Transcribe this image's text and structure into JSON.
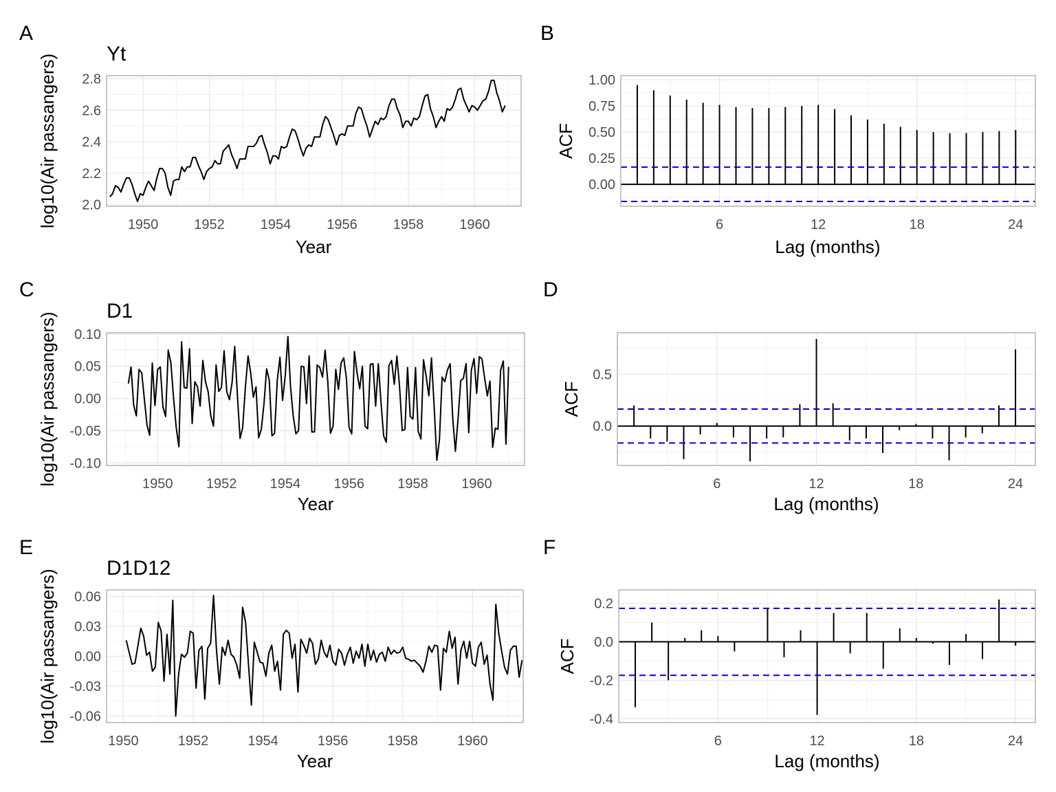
{
  "colors": {
    "line": "#000000",
    "ci": "#0000cc",
    "grid": "#e6e6e6",
    "border": "#b3b3b3"
  },
  "chart_data": [
    {
      "id": "A",
      "type": "line",
      "title": "Yt",
      "xlabel": "Year",
      "ylabel": "log10(Air passangers)",
      "xlim": [
        1948.9,
        1961.4
      ],
      "ylim": [
        1.99,
        2.82
      ],
      "xticks": [
        1950,
        1952,
        1954,
        1956,
        1958,
        1960
      ],
      "yticks": [
        2.0,
        2.2,
        2.4,
        2.6,
        2.8
      ],
      "ytick_labels": [
        "2.0",
        "2.2",
        "2.4",
        "2.6",
        "2.8"
      ],
      "grid": true,
      "x_start": 1949.0,
      "x_step": 0.0833333,
      "y": [
        2.05,
        2.07,
        2.12,
        2.11,
        2.08,
        2.13,
        2.17,
        2.17,
        2.13,
        2.07,
        2.02,
        2.07,
        2.06,
        2.11,
        2.15,
        2.12,
        2.09,
        2.17,
        2.23,
        2.23,
        2.2,
        2.11,
        2.06,
        2.15,
        2.16,
        2.16,
        2.24,
        2.21,
        2.24,
        2.24,
        2.3,
        2.3,
        2.25,
        2.21,
        2.16,
        2.21,
        2.23,
        2.24,
        2.28,
        2.26,
        2.26,
        2.34,
        2.36,
        2.38,
        2.32,
        2.28,
        2.23,
        2.29,
        2.29,
        2.29,
        2.37,
        2.37,
        2.37,
        2.39,
        2.43,
        2.44,
        2.38,
        2.33,
        2.26,
        2.31,
        2.31,
        2.29,
        2.37,
        2.36,
        2.37,
        2.43,
        2.48,
        2.47,
        2.42,
        2.36,
        2.31,
        2.36,
        2.38,
        2.37,
        2.43,
        2.43,
        2.43,
        2.51,
        2.56,
        2.54,
        2.49,
        2.44,
        2.38,
        2.44,
        2.45,
        2.44,
        2.5,
        2.5,
        2.5,
        2.58,
        2.62,
        2.61,
        2.55,
        2.5,
        2.43,
        2.48,
        2.53,
        2.51,
        2.55,
        2.54,
        2.56,
        2.63,
        2.67,
        2.67,
        2.61,
        2.57,
        2.49,
        2.53,
        2.53,
        2.5,
        2.55,
        2.54,
        2.56,
        2.63,
        2.69,
        2.7,
        2.61,
        2.56,
        2.49,
        2.53,
        2.56,
        2.53,
        2.61,
        2.6,
        2.62,
        2.67,
        2.73,
        2.74,
        2.67,
        2.63,
        2.59,
        2.63,
        2.62,
        2.6,
        2.63,
        2.66,
        2.67,
        2.72,
        2.79,
        2.79,
        2.71,
        2.66,
        2.59,
        2.63
      ]
    },
    {
      "id": "B",
      "type": "bar",
      "title": "",
      "xlabel": "Lag (months)",
      "ylabel": "ACF",
      "xlim": [
        0,
        25.2
      ],
      "ylim": [
        -0.21,
        1.04
      ],
      "xticks": [
        6,
        12,
        18,
        24
      ],
      "yticks": [
        0.0,
        0.25,
        0.5,
        0.75,
        1.0
      ],
      "ytick_labels": [
        "0.00",
        "0.25",
        "0.50",
        "0.75",
        "1.00"
      ],
      "grid": true,
      "ci": 0.164,
      "lags": [
        1,
        2,
        3,
        4,
        5,
        6,
        7,
        8,
        9,
        10,
        11,
        12,
        13,
        14,
        15,
        16,
        17,
        18,
        19,
        20,
        21,
        22,
        23,
        24
      ],
      "values": [
        0.95,
        0.9,
        0.85,
        0.81,
        0.78,
        0.76,
        0.74,
        0.73,
        0.73,
        0.74,
        0.75,
        0.76,
        0.72,
        0.66,
        0.62,
        0.58,
        0.55,
        0.52,
        0.5,
        0.49,
        0.49,
        0.5,
        0.51,
        0.52
      ]
    },
    {
      "id": "C",
      "type": "line",
      "title": "D1",
      "xlabel": "Year",
      "ylabel": "log10(Air passangers)",
      "xlim": [
        1948.4,
        1961.5
      ],
      "ylim": [
        -0.104,
        0.102
      ],
      "xticks": [
        1950,
        1952,
        1954,
        1956,
        1958,
        1960
      ],
      "yticks": [
        -0.1,
        -0.05,
        0.0,
        0.05,
        0.1
      ],
      "ytick_labels": [
        "-0.10",
        "-0.05",
        "0.00",
        "0.05",
        "0.10"
      ],
      "grid": true,
      "x_start": 1949.0833,
      "x_step": 0.0833333,
      "y": [
        0.023,
        0.049,
        -0.01,
        -0.027,
        0.045,
        0.04,
        0.0,
        -0.041,
        -0.057,
        0.055,
        -0.011,
        0.045,
        0.049,
        -0.013,
        -0.028,
        0.075,
        0.055,
        0.0,
        -0.045,
        -0.075,
        0.088,
        0.017,
        0.016,
        0.077,
        -0.039,
        0.026,
        0.018,
        -0.012,
        0.059,
        0.026,
        0.011,
        -0.027,
        -0.043,
        0.052,
        0.011,
        0.017,
        0.074,
        0.011,
        -0.002,
        0.025,
        0.081,
        0.005,
        -0.062,
        -0.045,
        0.017,
        0.066,
        0.04,
        0.002,
        0.018,
        -0.061,
        -0.048,
        -0.008,
        0.046,
        0.028,
        -0.058,
        -0.054,
        0.028,
        0.064,
        -0.003,
        0.035,
        0.096,
        0.018,
        -0.027,
        -0.055,
        -0.05,
        0.05,
        0.049,
        -0.008,
        0.066,
        -0.052,
        -0.052,
        0.052,
        0.048,
        0.033,
        0.075,
        0.026,
        -0.054,
        -0.043,
        0.045,
        0.014,
        0.055,
        0.063,
        0.031,
        -0.045,
        -0.055,
        0.073,
        0.04,
        0.015,
        0.05,
        -0.043,
        -0.047,
        0.053,
        0.054,
        -0.012,
        0.054,
        -0.005,
        -0.058,
        -0.068,
        0.051,
        0.059,
        0.022,
        0.066,
        0.018,
        -0.05,
        -0.048,
        0.048,
        -0.028,
        -0.032,
        0.048,
        -0.051,
        -0.063,
        0.06,
        0.034,
        0.004,
        0.063,
        -0.013,
        -0.096,
        -0.064,
        0.033,
        0.026,
        0.044,
        0.054,
        -0.032,
        -0.082,
        -0.031,
        0.028,
        0.031,
        0.054,
        -0.053,
        0.044,
        0.062,
        0.008,
        0.065,
        0.061,
        0.031,
        0.004,
        0.027,
        -0.076,
        -0.046,
        -0.048,
        0.044,
        0.058,
        -0.071,
        0.049
      ]
    },
    {
      "id": "D",
      "type": "bar",
      "title": "",
      "xlabel": "Lag (months)",
      "ylabel": "ACF",
      "xlim": [
        0,
        25.2
      ],
      "ylim": [
        -0.38,
        0.9
      ],
      "xticks": [
        6,
        12,
        18,
        24
      ],
      "yticks": [
        0.0,
        0.5
      ],
      "ytick_labels": [
        "0.0",
        "0.5"
      ],
      "grid": true,
      "ci": 0.164,
      "lags": [
        1,
        2,
        3,
        4,
        5,
        6,
        7,
        8,
        9,
        10,
        11,
        12,
        13,
        14,
        15,
        16,
        17,
        18,
        19,
        20,
        21,
        22,
        23,
        24
      ],
      "values": [
        0.2,
        -0.12,
        -0.15,
        -0.32,
        -0.08,
        0.03,
        -0.11,
        -0.34,
        -0.12,
        -0.11,
        0.21,
        0.84,
        0.22,
        -0.14,
        -0.12,
        -0.26,
        -0.04,
        0.02,
        -0.12,
        -0.33,
        -0.11,
        -0.07,
        0.2,
        0.74
      ]
    },
    {
      "id": "E",
      "type": "line",
      "title": "D1D12",
      "xlabel": "Year",
      "ylabel": "log10(Air passangers)",
      "xlim": [
        1949.52,
        1961.45
      ],
      "ylim": [
        -0.0665,
        0.0665
      ],
      "xticks": [
        1950,
        1952,
        1954,
        1956,
        1958,
        1960
      ],
      "yticks": [
        -0.06,
        -0.03,
        0.0,
        0.03,
        0.06
      ],
      "ytick_labels": [
        "-0.06",
        "-0.03",
        "0.00",
        "0.03",
        "0.06"
      ],
      "grid": true,
      "x_start": 1950.0833,
      "x_step": 0.0833333,
      "y": [
        0.016,
        0.004,
        -0.008,
        -0.007,
        0.01,
        0.028,
        0.02,
        0.001,
        0.004,
        -0.015,
        -0.011,
        0.034,
        0.025,
        -0.025,
        0.022,
        -0.018,
        0.056,
        -0.06,
        -0.018,
        0.002,
        -0.001,
        0.003,
        0.025,
        0.023,
        -0.032,
        0.006,
        0.01,
        -0.043,
        0.008,
        0.013,
        0.061,
        0.007,
        -0.028,
        0.009,
        0.001,
        0.016,
        0.002,
        -0.001,
        -0.009,
        -0.022,
        0.049,
        0.034,
        -0.008,
        -0.049,
        0.014,
        0.004,
        -0.006,
        -0.007,
        -0.02,
        0.003,
        0.011,
        -0.015,
        -0.005,
        -0.034,
        0.022,
        0.026,
        0.023,
        -0.002,
        0.012,
        -0.036,
        0.017,
        0.011,
        0.003,
        0.018,
        0.013,
        -0.008,
        -0.003,
        0.016,
        0.004,
        -0.001,
        0.011,
        -0.005,
        -0.009,
        0.007,
        0.003,
        -0.009,
        0.002,
        0.009,
        -0.007,
        0.005,
        -0.002,
        0.012,
        -0.01,
        0.012,
        -0.004,
        0.006,
        -0.006,
        0.002,
        0.004,
        -0.005,
        0.009,
        0.002,
        0.006,
        0.003,
        0.004,
        0.009,
        -0.002,
        -0.003,
        -0.005,
        -0.004,
        -0.007,
        -0.01,
        -0.016,
        -0.005,
        0.01,
        0.004,
        0.011,
        0.01,
        -0.034,
        0.008,
        0.004,
        0.025,
        0.008,
        0.019,
        -0.028,
        0.006,
        0.015,
        -0.002,
        0.015,
        -0.007,
        -0.01,
        0.009,
        0.014,
        -0.008,
        0.001,
        -0.028,
        -0.044,
        0.052,
        0.023,
        0.005,
        -0.011,
        -0.018,
        0.006,
        0.01,
        0.01,
        -0.021,
        -0.004
      ]
    },
    {
      "id": "F",
      "type": "bar",
      "title": "",
      "xlabel": "Lag (months)",
      "ylabel": "ACF",
      "xlim": [
        0,
        25.2
      ],
      "ylim": [
        -0.42,
        0.27
      ],
      "xticks": [
        6,
        12,
        18,
        24
      ],
      "yticks": [
        -0.4,
        -0.2,
        0.0,
        0.2
      ],
      "ytick_labels": [
        "-0.4",
        "-0.2",
        "0.0",
        "0.2"
      ],
      "grid": true,
      "ci": 0.174,
      "lags": [
        1,
        2,
        3,
        4,
        5,
        6,
        7,
        8,
        9,
        10,
        11,
        12,
        13,
        14,
        15,
        16,
        17,
        18,
        19,
        20,
        21,
        22,
        23,
        24
      ],
      "values": [
        -0.34,
        0.1,
        -0.2,
        0.02,
        0.06,
        0.03,
        -0.05,
        0.0,
        0.17,
        -0.08,
        0.06,
        -0.38,
        0.15,
        -0.06,
        0.15,
        -0.14,
        0.07,
        0.02,
        -0.01,
        -0.12,
        0.04,
        -0.09,
        0.22,
        -0.02
      ]
    }
  ],
  "panels": [
    {
      "letter": "A",
      "title": "Yt"
    },
    {
      "letter": "B",
      "title": ""
    },
    {
      "letter": "C",
      "title": "D1"
    },
    {
      "letter": "D",
      "title": ""
    },
    {
      "letter": "E",
      "title": "D1D12"
    },
    {
      "letter": "F",
      "title": ""
    }
  ]
}
